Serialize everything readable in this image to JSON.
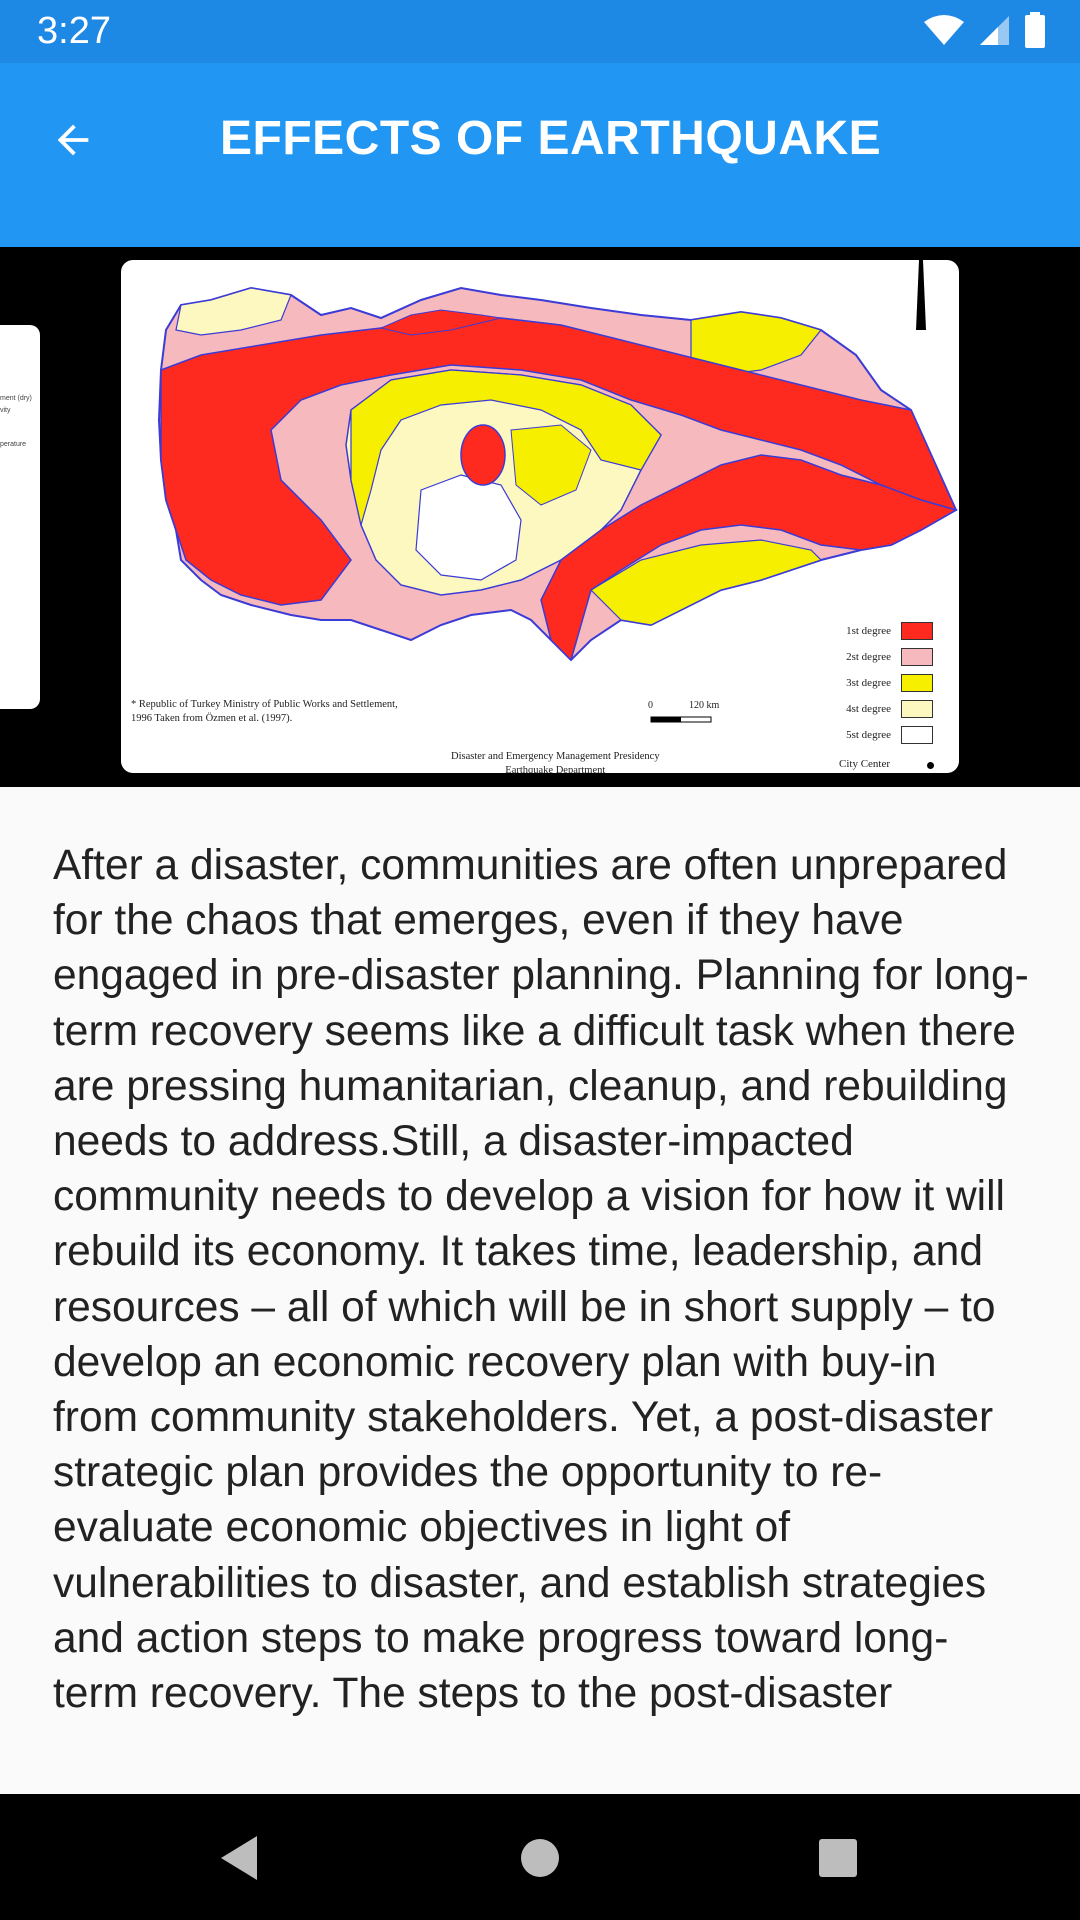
{
  "status_bar": {
    "time": "3:27"
  },
  "app_bar": {
    "title": "EFFECTS OF EARTHQUAKE"
  },
  "map": {
    "caption_line1": "* Republic of Turkey Ministry of Public Works and Settlement,",
    "caption_line2": "1996 Taken from Özmen et al. (1997).",
    "footer_line1": "Disaster and Emergency Management Presidency",
    "footer_line2": "Earthquake Department",
    "scale_zero": "0",
    "scale_distance": "120 km",
    "city_center_label": "City Center",
    "legend": [
      {
        "label": "1st degree",
        "color": "#ff2a1f"
      },
      {
        "label": "2st degree",
        "color": "#f6b9bd"
      },
      {
        "label": "3st degree",
        "color": "#f6f000"
      },
      {
        "label": "4st degree",
        "color": "#fdf8bf"
      },
      {
        "label": "5st degree",
        "color": "#ffffff"
      }
    ]
  },
  "previous_card": {
    "line1": "ment (dry)",
    "line2": "vity",
    "line3": "perature"
  },
  "article": {
    "text": "After a disaster, communities are often unprepared for the chaos that emerges, even if they have engaged in pre-disaster planning. Planning for long-term recovery seems like a difficult task when there are pressing humanitarian, cleanup, and rebuilding needs to address.Still, a disaster-impacted community needs to develop a vision for how it will rebuild its economy. It takes time, leadership, and resources – all of which will be in short supply – to develop an economic recovery plan with buy-in from community stakeholders. Yet, a post-disaster strategic plan provides the opportunity to re-evaluate economic objectives in light of vulnerabilities to disaster, and establish strategies and action steps to make progress toward long-term recovery. The steps to the post-disaster"
  },
  "colors": {
    "app_bar": "#2196f3",
    "status_bar": "#1e88e5"
  }
}
